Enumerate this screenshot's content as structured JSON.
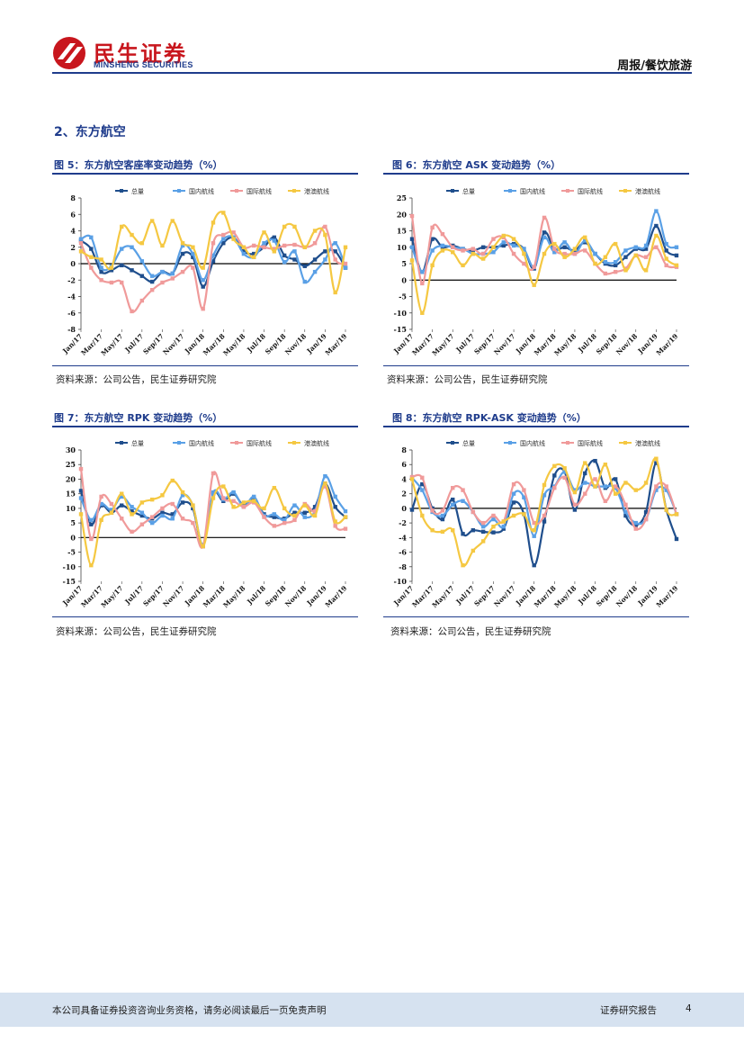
{
  "header": {
    "brand_cn": "民生证券",
    "brand_en": "MINSHENG SECURITIES",
    "report_tag": "周报/餐饮旅游",
    "colors": {
      "brand_red": "#c8161d",
      "brand_blue": "#1f3c8c"
    }
  },
  "section": {
    "title": "2、东方航空"
  },
  "legend": [
    "总量",
    "国内航线",
    "国际航线",
    "港澳航线"
  ],
  "series_colors": [
    "#1f4e8c",
    "#5aa0e6",
    "#f09a9a",
    "#f5c842"
  ],
  "figures": [
    {
      "title": "图 5：东方航空客座率变动趋势（%）",
      "source": "资料来源：公司公告，民生证券研究院",
      "chart_data": {
        "type": "line",
        "categories": [
          "Jan/17",
          "Feb/17",
          "Mar/17",
          "Apr/17",
          "May/17",
          "Jun/17",
          "Jul/17",
          "Aug/17",
          "Sep/17",
          "Oct/17",
          "Nov/17",
          "Dec/17",
          "Jan/18",
          "Feb/18",
          "Mar/18",
          "Apr/18",
          "May/18",
          "Jun/18",
          "Jul/18",
          "Aug/18",
          "Sep/18",
          "Oct/18",
          "Nov/18",
          "Dec/18",
          "Jan/19",
          "Feb/19",
          "Mar/19"
        ],
        "tick_labels": [
          "Jan/17",
          "Mar/17",
          "May/17",
          "Jul/17",
          "Sep/17",
          "Nov/17",
          "Jan/18",
          "Mar/18",
          "May/18",
          "Jul/18",
          "Sep/18",
          "Nov/18",
          "Jan/19",
          "Mar/19"
        ],
        "ylim": [
          -8,
          8
        ],
        "yticks": [
          -8,
          -6,
          -4,
          -2,
          0,
          2,
          4,
          6,
          8
        ],
        "series": [
          {
            "name": "总量",
            "values": [
              2.8,
              1.8,
              -1.0,
              -0.8,
              -0.2,
              -0.8,
              -1.5,
              -2.2,
              -1.0,
              -1.2,
              1.2,
              0.8,
              -2.8,
              0.3,
              2.5,
              3.2,
              1.5,
              1.2,
              2.0,
              3.2,
              1.0,
              0.5,
              -0.3,
              0.5,
              1.5,
              1.5,
              -0.5
            ]
          },
          {
            "name": "国内航线",
            "values": [
              3.0,
              3.2,
              -0.5,
              -0.3,
              1.8,
              2.0,
              0.3,
              -1.5,
              -1.0,
              -1.2,
              2.2,
              1.2,
              -2.0,
              1.0,
              3.0,
              3.2,
              1.2,
              0.8,
              2.5,
              2.8,
              0.2,
              1.5,
              -2.2,
              -1.0,
              0.5,
              2.5,
              -0.5
            ]
          },
          {
            "name": "国际航线",
            "values": [
              2.5,
              -0.5,
              -2.0,
              -2.3,
              -2.3,
              -5.8,
              -4.5,
              -3.2,
              -2.3,
              -1.8,
              -1.0,
              -0.5,
              -5.5,
              2.5,
              3.5,
              3.8,
              2.0,
              2.2,
              2.0,
              1.8,
              2.2,
              2.3,
              2.0,
              2.5,
              4.5,
              0.5,
              0.0
            ]
          },
          {
            "name": "港澳航线",
            "values": [
              1.5,
              0.8,
              0.5,
              -0.5,
              4.5,
              3.5,
              2.5,
              5.2,
              2.2,
              5.2,
              2.5,
              2.0,
              -0.5,
              5.0,
              6.2,
              3.0,
              2.0,
              0.8,
              3.8,
              1.5,
              4.5,
              4.5,
              2.0,
              4.0,
              3.5,
              -3.5,
              2.0
            ]
          }
        ]
      }
    },
    {
      "title": "图 6：东方航空 ASK 变动趋势（%）",
      "source": "资料来源：公司公告，民生证券研究院",
      "chart_data": {
        "type": "line",
        "categories": [
          "Jan/17",
          "Feb/17",
          "Mar/17",
          "Apr/17",
          "May/17",
          "Jun/17",
          "Jul/17",
          "Aug/17",
          "Sep/17",
          "Oct/17",
          "Nov/17",
          "Dec/17",
          "Jan/18",
          "Feb/18",
          "Mar/18",
          "Apr/18",
          "May/18",
          "Jun/18",
          "Jul/18",
          "Aug/18",
          "Sep/18",
          "Oct/18",
          "Nov/18",
          "Dec/18",
          "Jan/19",
          "Feb/19",
          "Mar/19"
        ],
        "tick_labels": [
          "Jan/17",
          "Mar/17",
          "May/17",
          "Jul/17",
          "Sep/17",
          "Nov/17",
          "Jan/18",
          "Mar/18",
          "May/18",
          "Jul/18",
          "Sep/18",
          "Nov/18",
          "Jan/19",
          "Mar/19"
        ],
        "ylim": [
          -15,
          25
        ],
        "yticks": [
          -15,
          -10,
          -5,
          0,
          5,
          10,
          15,
          20,
          25
        ],
        "series": [
          {
            "name": "总量",
            "values": [
              12.5,
              2.5,
              12.5,
              10.0,
              10.5,
              9.5,
              9.0,
              10.0,
              10.0,
              10.5,
              11.0,
              9.5,
              3.5,
              14.5,
              9.5,
              10.0,
              9.0,
              11.5,
              8.0,
              5.0,
              4.5,
              7.0,
              9.5,
              9.5,
              16.5,
              9.0,
              7.5
            ]
          },
          {
            "name": "国内航线",
            "values": [
              10.0,
              2.5,
              9.0,
              10.5,
              10.0,
              9.5,
              8.0,
              8.0,
              8.5,
              11.5,
              10.5,
              9.5,
              4.0,
              13.0,
              8.5,
              11.5,
              8.0,
              12.0,
              8.0,
              5.5,
              5.5,
              9.0,
              10.0,
              10.5,
              21.0,
              11.0,
              10.0
            ]
          },
          {
            "name": "国际航线",
            "values": [
              19.5,
              -1.0,
              16.0,
              14.0,
              10.0,
              9.0,
              9.5,
              8.0,
              12.5,
              13.0,
              8.0,
              5.0,
              4.0,
              19.0,
              9.5,
              8.0,
              8.0,
              9.0,
              5.0,
              2.0,
              2.5,
              3.5,
              7.5,
              7.0,
              10.0,
              4.5,
              4.0
            ]
          },
          {
            "name": "港澳航线",
            "values": [
              6.0,
              -10.0,
              4.5,
              9.0,
              8.5,
              4.5,
              8.0,
              6.5,
              10.0,
              13.5,
              12.5,
              8.0,
              -1.5,
              8.0,
              11.0,
              7.0,
              9.5,
              13.0,
              5.0,
              7.0,
              11.0,
              3.0,
              7.5,
              3.0,
              13.5,
              6.5,
              4.5
            ]
          }
        ]
      }
    },
    {
      "title": "图 7：东方航空 RPK 变动趋势（%）",
      "source": "资料来源：公司公告，民生证券研究院",
      "chart_data": {
        "type": "line",
        "categories": [
          "Jan/17",
          "Feb/17",
          "Mar/17",
          "Apr/17",
          "May/17",
          "Jun/17",
          "Jul/17",
          "Aug/17",
          "Sep/17",
          "Oct/17",
          "Nov/17",
          "Dec/17",
          "Jan/18",
          "Feb/18",
          "Mar/18",
          "Apr/18",
          "May/18",
          "Jun/18",
          "Jul/18",
          "Aug/18",
          "Sep/18",
          "Oct/18",
          "Nov/18",
          "Dec/18",
          "Jan/19",
          "Feb/19",
          "Mar/19"
        ],
        "tick_labels": [
          "Jan/17",
          "Mar/17",
          "May/17",
          "Jul/17",
          "Sep/17",
          "Nov/17",
          "Jan/18",
          "Mar/18",
          "May/18",
          "Jul/18",
          "Sep/18",
          "Nov/18",
          "Jan/19",
          "Mar/19"
        ],
        "ylim": [
          -15,
          30
        ],
        "yticks": [
          -15,
          -10,
          -5,
          0,
          5,
          10,
          15,
          20,
          25,
          30
        ],
        "series": [
          {
            "name": "总量",
            "values": [
              16.0,
              4.5,
              11.0,
              8.5,
              11.0,
              9.0,
              7.5,
              6.5,
              8.5,
              8.0,
              12.0,
              10.0,
              -3.0,
              15.0,
              12.5,
              15.0,
              11.0,
              13.5,
              8.0,
              7.0,
              6.5,
              8.5,
              8.5,
              10.5,
              18.5,
              10.5,
              7.0
            ]
          },
          {
            "name": "国内航线",
            "values": [
              13.5,
              6.0,
              11.5,
              9.5,
              14.0,
              10.5,
              8.5,
              5.0,
              7.5,
              6.5,
              14.5,
              11.0,
              -2.5,
              15.5,
              13.0,
              15.5,
              10.5,
              14.0,
              7.5,
              8.0,
              6.0,
              11.0,
              7.0,
              9.0,
              21.0,
              14.0,
              9.0
            ]
          },
          {
            "name": "国际航线",
            "values": [
              23.5,
              -0.5,
              14.0,
              11.5,
              6.5,
              2.0,
              4.5,
              7.0,
              10.0,
              11.5,
              6.5,
              5.0,
              -3.0,
              22.0,
              13.5,
              12.5,
              10.5,
              12.0,
              7.0,
              4.0,
              5.0,
              6.0,
              11.5,
              9.0,
              17.5,
              4.0,
              3.0
            ]
          },
          {
            "name": "港澳航线",
            "values": [
              8.0,
              -9.5,
              6.0,
              8.5,
              15.0,
              8.0,
              12.0,
              13.0,
              14.5,
              19.5,
              15.5,
              11.0,
              -3.0,
              13.5,
              17.5,
              10.5,
              12.0,
              12.5,
              10.0,
              17.0,
              10.0,
              7.5,
              11.0,
              7.5,
              18.5,
              5.5,
              7.0
            ]
          }
        ]
      }
    },
    {
      "title": "图 8：东方航空 RPK-ASK 变动趋势（%）",
      "source": "资料来源：公司公告，民生证券研究院",
      "chart_data": {
        "type": "line",
        "categories": [
          "Jan/17",
          "Feb/17",
          "Mar/17",
          "Apr/17",
          "May/17",
          "Jun/17",
          "Jul/17",
          "Aug/17",
          "Sep/17",
          "Oct/17",
          "Nov/17",
          "Dec/17",
          "Jan/18",
          "Feb/18",
          "Mar/18",
          "Apr/18",
          "May/18",
          "Jun/18",
          "Jul/18",
          "Aug/18",
          "Sep/18",
          "Oct/18",
          "Nov/18",
          "Dec/18",
          "Jan/19",
          "Feb/19",
          "Mar/19"
        ],
        "tick_labels": [
          "Jan/17",
          "Mar/17",
          "May/17",
          "Jul/17",
          "Sep/17",
          "Nov/17",
          "Jan/18",
          "Mar/18",
          "May/18",
          "Jul/18",
          "Sep/18",
          "Nov/18",
          "Jan/19",
          "Mar/19"
        ],
        "ylim": [
          -10,
          8
        ],
        "yticks": [
          -10,
          -8,
          -6,
          -4,
          -2,
          0,
          2,
          4,
          6,
          8
        ],
        "series": [
          {
            "name": "总量",
            "values": [
              -0.2,
              3.3,
              0.0,
              -1.5,
              1.2,
              -3.5,
              -3.0,
              -3.2,
              -3.3,
              -2.8,
              0.8,
              -0.8,
              -7.8,
              -1.8,
              4.5,
              5.0,
              -0.2,
              4.8,
              6.5,
              2.8,
              4.0,
              -1.0,
              -2.3,
              -0.5,
              6.2,
              -0.2,
              -4.2
            ]
          },
          {
            "name": "国内航线",
            "values": [
              4.2,
              2.5,
              -0.5,
              -1.0,
              0.5,
              1.0,
              -0.5,
              -2.5,
              -1.5,
              -2.5,
              2.0,
              1.5,
              -3.8,
              1.8,
              3.0,
              5.0,
              2.5,
              3.5,
              3.0,
              3.0,
              2.8,
              -0.5,
              -2.0,
              -1.5,
              2.5,
              2.5,
              -0.8
            ]
          },
          {
            "name": "国际航线",
            "values": [
              4.3,
              4.2,
              -0.3,
              -0.3,
              2.8,
              2.5,
              -0.5,
              -2.0,
              -1.0,
              -1.8,
              3.3,
              2.5,
              -2.0,
              -1.0,
              2.8,
              4.2,
              0.5,
              2.0,
              4.0,
              1.0,
              3.0,
              0.5,
              -2.8,
              -1.5,
              3.0,
              3.0,
              -0.8
            ]
          },
          {
            "name": "港澳航线",
            "values": [
              4.0,
              -1.0,
              -3.0,
              -3.2,
              -3.0,
              -7.8,
              -5.8,
              -4.5,
              -2.5,
              -1.8,
              -1.0,
              -0.8,
              -3.0,
              3.2,
              5.8,
              5.5,
              2.2,
              6.2,
              3.0,
              6.0,
              2.0,
              3.5,
              2.5,
              3.5,
              6.8,
              -0.2,
              -0.8
            ]
          }
        ]
      }
    }
  ],
  "footer": {
    "disclaimer": "本公司具备证券投资咨询业务资格，请务必阅读最后一页免责声明",
    "report_type": "证券研究报告",
    "page_number": "4"
  }
}
